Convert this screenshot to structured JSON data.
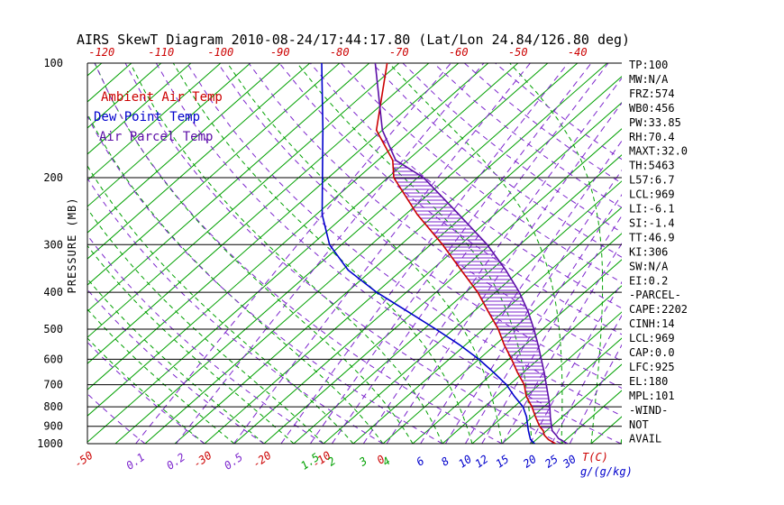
{
  "title": "AIRS SkewT Diagram 2010-08-24/17:44:17.80 (Lat/Lon 24.84/126.80 deg)",
  "colors": {
    "temperature": "#CC0000",
    "dew_point": "#0000CC",
    "parcel": "#5B0EA6",
    "green": "#00A000",
    "purple": "#7D26CD",
    "axis": "#000000"
  },
  "legend": [
    {
      "label": "Ambient Air Temp",
      "color_key": "temperature"
    },
    {
      "label": "Dew Point Temp",
      "color_key": "dew_point"
    },
    {
      "label": "Air Parcel Temp",
      "color_key": "parcel"
    }
  ],
  "axes": {
    "pressure_label": "PRESSURE (MB)",
    "pressure_ticks": [
      100,
      200,
      300,
      400,
      500,
      600,
      700,
      800,
      900,
      1000
    ],
    "top_ticks": [
      -120,
      -110,
      -100,
      -90,
      -80,
      -70,
      -60,
      -50,
      -40
    ],
    "bottom_temp_ticks": [
      -50,
      -30,
      -20,
      -10,
      0
    ],
    "temp_unit": "T(C)",
    "mix_unit": "g/(g/kg)",
    "mix_ticks": [
      {
        "value": 0.1,
        "color": "purple"
      },
      {
        "value": 0.2,
        "color": "purple"
      },
      {
        "value": 0.5,
        "color": "purple"
      },
      {
        "value": 1.5,
        "color": "green"
      },
      {
        "value": 2,
        "color": "green"
      },
      {
        "value": 3,
        "color": "green"
      },
      {
        "value": 4,
        "color": "green"
      },
      {
        "value": 6,
        "color": "blue"
      },
      {
        "value": 8,
        "color": "blue"
      },
      {
        "value": 10,
        "color": "blue"
      },
      {
        "value": 12,
        "color": "blue"
      },
      {
        "value": 15,
        "color": "blue"
      },
      {
        "value": 20,
        "color": "blue"
      },
      {
        "value": 25,
        "color": "blue"
      },
      {
        "value": 30,
        "color": "blue"
      }
    ]
  },
  "stats": [
    "TP:100",
    "MW:N/A",
    "FRZ:574",
    "WB0:456",
    "PW:33.85",
    "RH:70.4",
    "MAXT:32.0",
    "TH:5463",
    "L57:6.7",
    "LCL:969",
    "LI:-6.1",
    "SI:-1.4",
    "TT:46.9",
    "KI:306",
    "SW:N/A",
    "EI:0.2",
    "-PARCEL-",
    "CAPE:2202",
    "CINH:14",
    "LCL:969",
    "CAP:0.0",
    "LFC:925",
    "EL:180",
    "MPL:101",
    "-WIND-",
    "NOT",
    "AVAIL"
  ],
  "chart_data": {
    "type": "line",
    "variant": "skew-t-log-p",
    "pressure_axis": {
      "min": 100,
      "max": 1000,
      "scale": "log",
      "unit": "MB"
    },
    "temperature_axis": {
      "unit": "C",
      "bottom_labels": [
        -50,
        -30,
        -20,
        -10,
        0
      ],
      "top_labels": [
        -120,
        -110,
        -100,
        -90,
        -80,
        -70,
        -60,
        -50,
        -40
      ]
    },
    "series": [
      {
        "name": "Ambient Air Temp",
        "color_key": "temperature",
        "points": [
          [
            1000,
            29
          ],
          [
            975,
            27
          ],
          [
            950,
            25.5
          ],
          [
            925,
            24.5
          ],
          [
            900,
            23
          ],
          [
            850,
            20.5
          ],
          [
            800,
            18
          ],
          [
            750,
            15
          ],
          [
            700,
            12.5
          ],
          [
            650,
            9
          ],
          [
            600,
            5.5
          ],
          [
            550,
            1.5
          ],
          [
            500,
            -2.5
          ],
          [
            450,
            -7.5
          ],
          [
            400,
            -13
          ],
          [
            350,
            -20
          ],
          [
            300,
            -28
          ],
          [
            250,
            -38
          ],
          [
            200,
            -49
          ],
          [
            180,
            -52.5
          ],
          [
            150,
            -61
          ],
          [
            100,
            -72
          ]
        ]
      },
      {
        "name": "Dew Point Temp",
        "color_key": "dew_point",
        "points": [
          [
            1000,
            25.5
          ],
          [
            975,
            24
          ],
          [
            950,
            23
          ],
          [
            925,
            22
          ],
          [
            900,
            21
          ],
          [
            850,
            19
          ],
          [
            800,
            16.5
          ],
          [
            750,
            13
          ],
          [
            700,
            9.5
          ],
          [
            650,
            5
          ],
          [
            600,
            0
          ],
          [
            550,
            -6
          ],
          [
            500,
            -13
          ],
          [
            450,
            -21
          ],
          [
            400,
            -30
          ],
          [
            350,
            -39
          ],
          [
            300,
            -47
          ],
          [
            250,
            -54
          ],
          [
            200,
            -61
          ],
          [
            150,
            -70
          ],
          [
            100,
            -83
          ]
        ]
      },
      {
        "name": "Air Parcel Temp",
        "color_key": "parcel",
        "points": [
          [
            1000,
            31
          ],
          [
            969,
            28.5
          ],
          [
            950,
            27.5
          ],
          [
            925,
            26
          ],
          [
            900,
            25
          ],
          [
            850,
            23
          ],
          [
            800,
            21
          ],
          [
            750,
            18.7
          ],
          [
            700,
            16.2
          ],
          [
            650,
            13.5
          ],
          [
            600,
            10.5
          ],
          [
            550,
            7.2
          ],
          [
            500,
            3.5
          ],
          [
            450,
            -0.8
          ],
          [
            400,
            -6
          ],
          [
            350,
            -12.5
          ],
          [
            300,
            -20.5
          ],
          [
            250,
            -31
          ],
          [
            200,
            -44
          ],
          [
            180,
            -52
          ],
          [
            150,
            -60
          ],
          [
            100,
            -74
          ]
        ]
      }
    ],
    "cape_area": {
      "from_pressure": 925,
      "to_pressure": 180,
      "between": [
        "Air Parcel Temp",
        "Ambient Air Temp"
      ],
      "hatch": "horizontal"
    },
    "background": {
      "isotherms_c": {
        "start": -125,
        "end": 40,
        "step": 5
      },
      "mixing_ratio_g_kg": [
        0.1,
        0.2,
        0.5,
        1,
        1.5,
        2,
        3,
        4,
        6,
        8,
        10,
        12,
        15,
        20,
        25,
        30
      ],
      "dry_adiabats_c": {
        "start": -40,
        "end": 150,
        "step": 10
      },
      "moist_adiabats_c": {
        "start": -30,
        "end": 45,
        "step": 5
      }
    }
  }
}
